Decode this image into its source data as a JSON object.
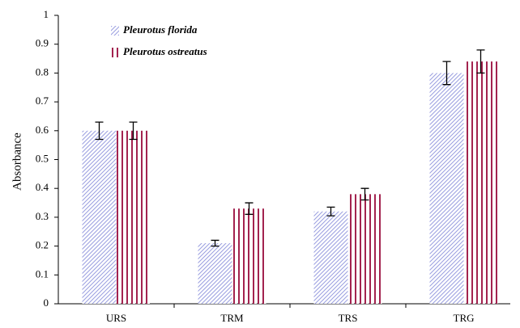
{
  "chart_data": {
    "type": "bar",
    "y_label": "Absorbance",
    "categories": [
      "URS",
      "TRM",
      "TRS",
      "TRG"
    ],
    "series": [
      {
        "name": "Pleurotus florida",
        "color": "#9a9ee0",
        "hatch": "diagonal",
        "values": [
          0.6,
          0.21,
          0.32,
          0.8
        ],
        "errors": [
          0.03,
          0.01,
          0.015,
          0.04
        ]
      },
      {
        "name": "Pleurotus ostreatus",
        "color": "#a3234f",
        "hatch": "vertical",
        "values": [
          0.6,
          0.33,
          0.38,
          0.84
        ],
        "errors": [
          0.03,
          0.02,
          0.02,
          0.04
        ]
      }
    ],
    "ylim": [
      0,
      1
    ],
    "yticks": [
      0,
      0.1,
      0.2,
      0.3,
      0.4,
      0.5,
      0.6,
      0.7,
      0.8,
      0.9,
      1
    ],
    "grid": false,
    "legend": "top-left"
  }
}
